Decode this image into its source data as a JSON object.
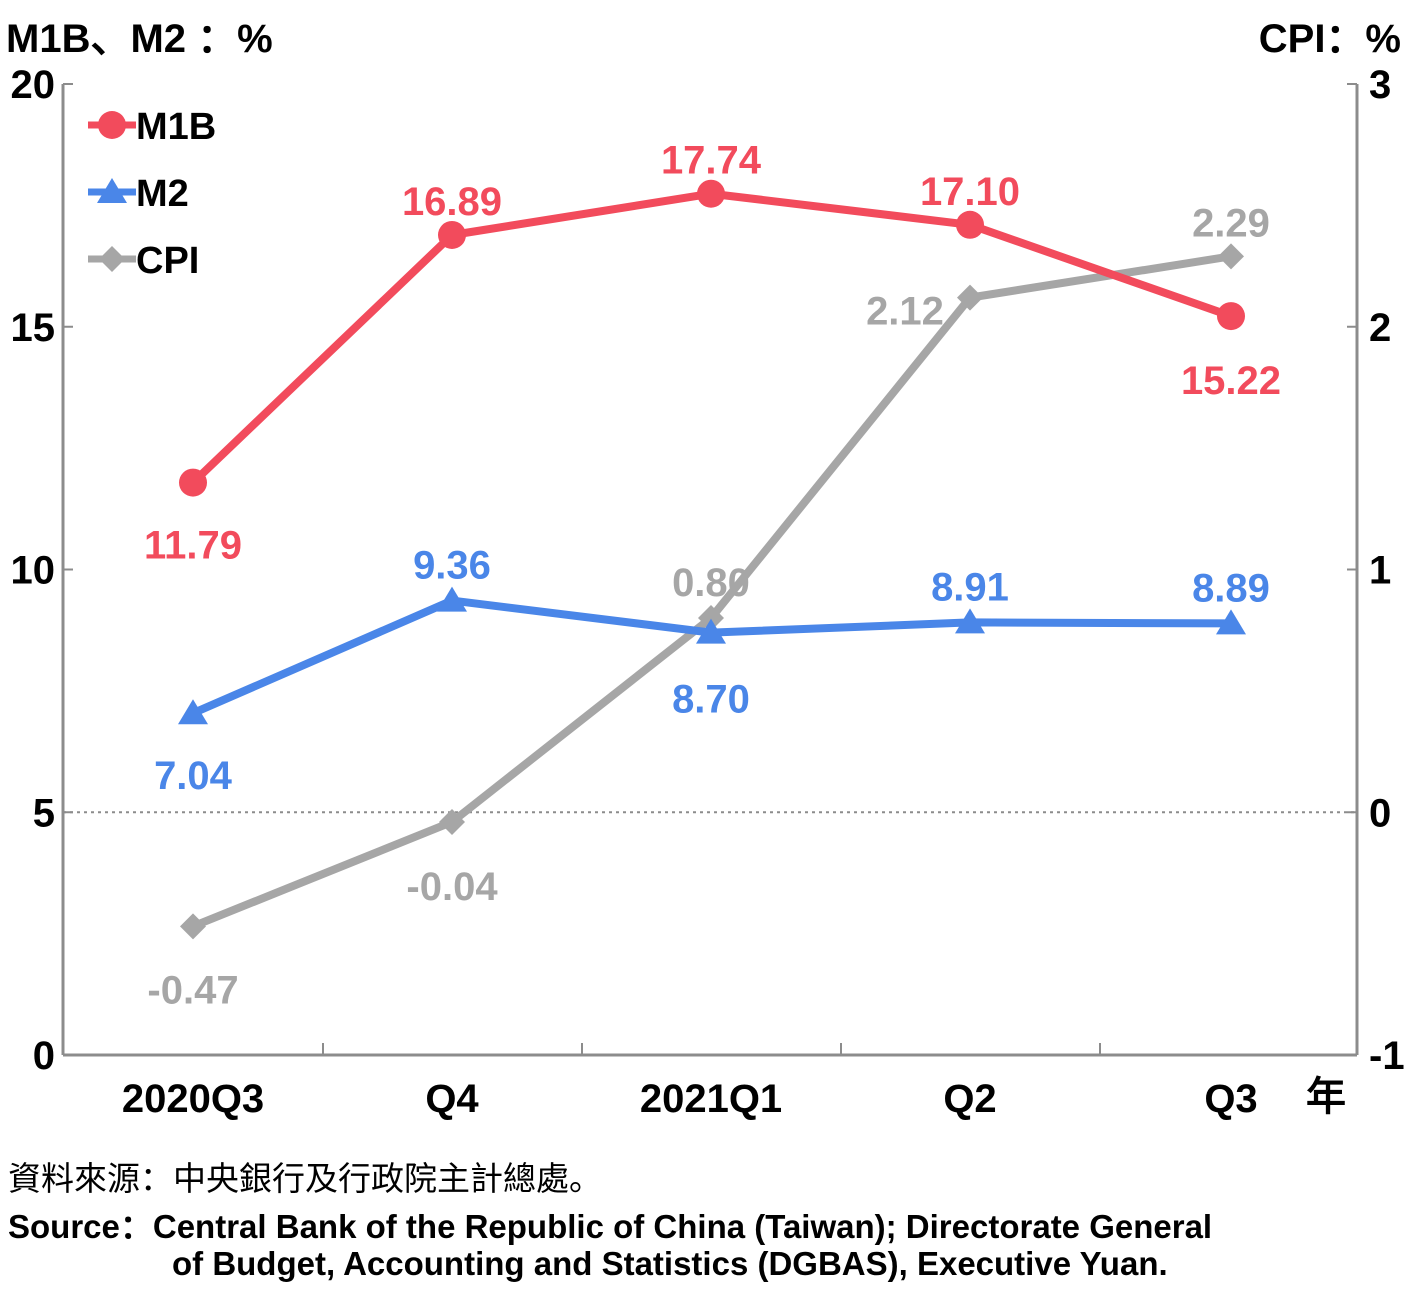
{
  "chart_data": {
    "type": "line",
    "y_left_title": "M1B、M2 ：%",
    "y_right_title": "CPI：%",
    "x_unit": "年",
    "categories": [
      "2020Q3",
      "Q4",
      "2021Q1",
      "Q2",
      "Q3"
    ],
    "y_left": {
      "range": [
        0,
        20
      ],
      "ticks": [
        "0",
        "5",
        "10",
        "15",
        "20"
      ]
    },
    "y_right": {
      "range": [
        -1,
        3
      ],
      "ticks": [
        "-1",
        "0",
        "1",
        "2",
        "3"
      ]
    },
    "zero_reference_line": "dotted at CPI 0",
    "legend_position": "top-left",
    "series": [
      {
        "name": "M1B",
        "axis": "left",
        "marker": "circle",
        "color": "#f24b5c",
        "values": [
          11.79,
          16.89,
          17.74,
          17.1,
          15.22
        ],
        "labels": [
          "11.79",
          "16.89",
          "17.74",
          "17.10",
          "15.22"
        ]
      },
      {
        "name": "M2",
        "axis": "left",
        "marker": "triangle",
        "color": "#4a86e8",
        "values": [
          7.04,
          9.36,
          8.7,
          8.91,
          8.89
        ],
        "labels": [
          "7.04",
          "9.36",
          "8.70",
          "8.91",
          "8.89"
        ]
      },
      {
        "name": "CPI",
        "axis": "right",
        "marker": "diamond",
        "color": "#a6a6a6",
        "values": [
          -0.47,
          -0.04,
          0.8,
          2.12,
          2.29
        ],
        "labels": [
          "-0.47",
          "-0.04",
          "0.80",
          "2.12",
          "2.29"
        ]
      }
    ]
  },
  "source": {
    "zh": "資料來源：中央銀行及行政院主計總處。",
    "en_line1": "Source：Central Bank of the Republic of China (Taiwan); Directorate General",
    "en_line2": "of Budget, Accounting and Statistics (DGBAS), Executive Yuan."
  }
}
